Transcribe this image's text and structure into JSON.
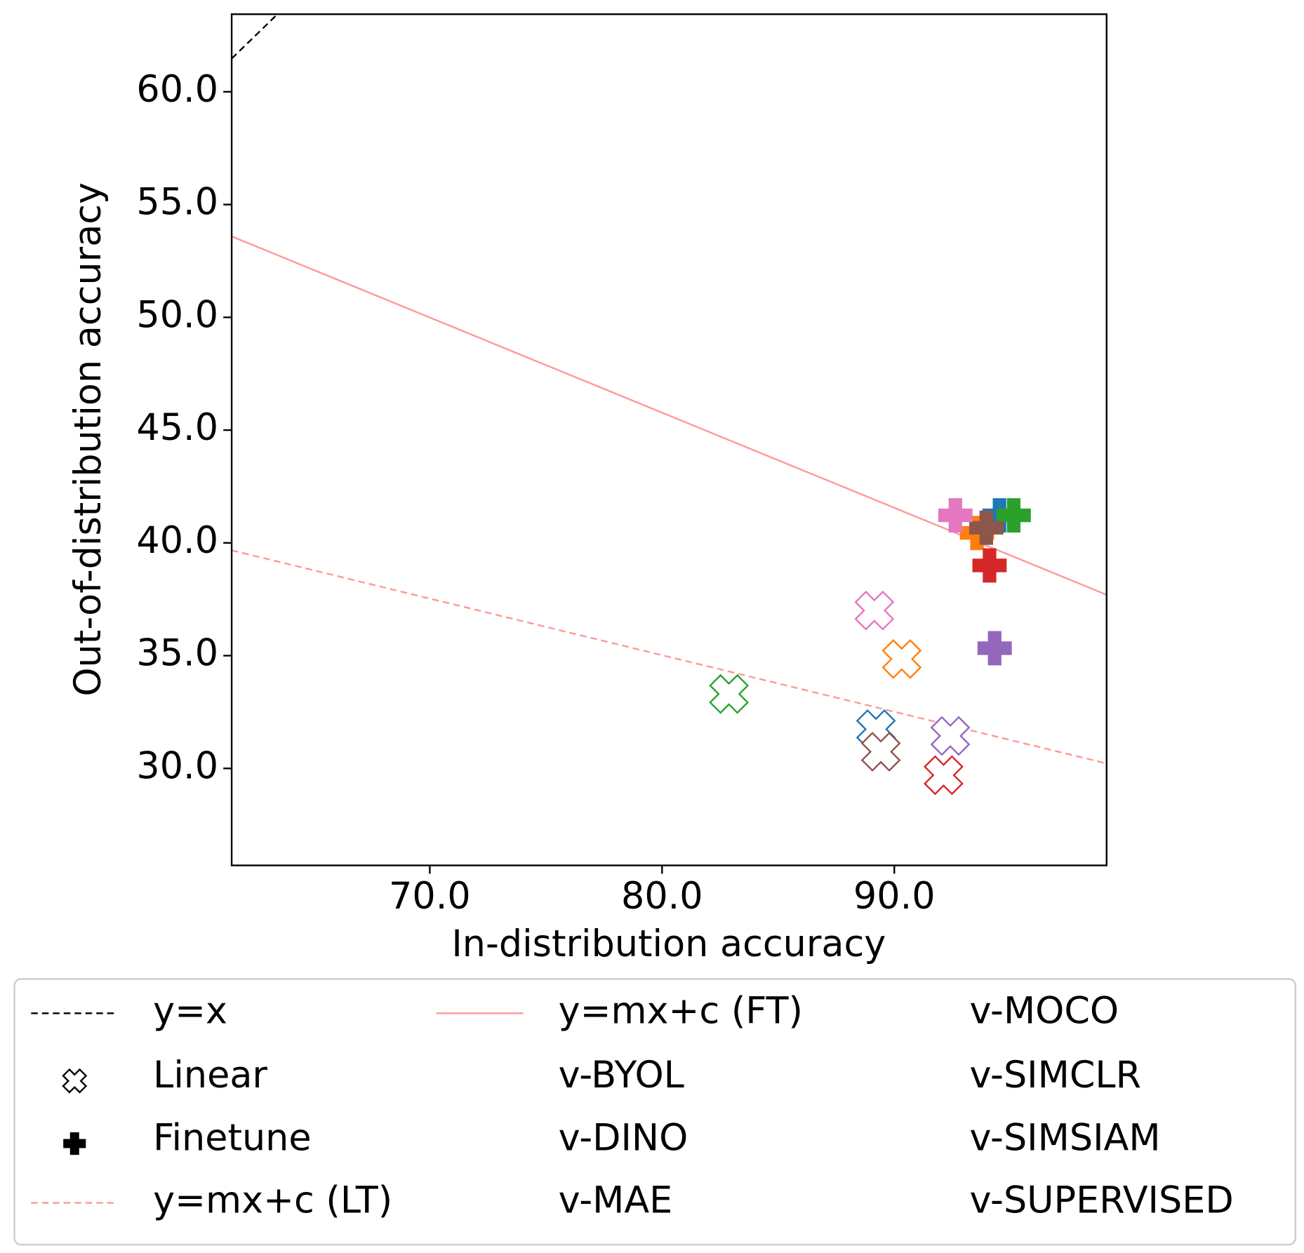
{
  "chart_data": {
    "type": "scatter",
    "xlabel": "In-distribution accuracy",
    "ylabel": "Out-of-distribution accuracy",
    "xlim": [
      61.47,
      99.14
    ],
    "ylim": [
      25.7,
      63.44
    ],
    "xticks": [
      {
        "value": 70,
        "label": "70.0"
      },
      {
        "value": 80,
        "label": "80.0"
      },
      {
        "value": 90,
        "label": "90.0"
      }
    ],
    "yticks": [
      {
        "value": 30,
        "label": "30.0"
      },
      {
        "value": 35,
        "label": "35.0"
      },
      {
        "value": 40,
        "label": "40.0"
      },
      {
        "value": 45,
        "label": "45.0"
      },
      {
        "value": 50,
        "label": "50.0"
      },
      {
        "value": 55,
        "label": "55.0"
      },
      {
        "value": 60,
        "label": "60.0"
      }
    ],
    "groups": [
      {
        "name": "v-BYOL",
        "color": "#1f77b4"
      },
      {
        "name": "v-DINO",
        "color": "#ff7f0e"
      },
      {
        "name": "v-MAE",
        "color": "#2ca02c"
      },
      {
        "name": "v-MOCO",
        "color": "#d62728"
      },
      {
        "name": "v-SIMCLR",
        "color": "#9467bd"
      },
      {
        "name": "v-SIMSIAM",
        "color": "#8c564b"
      },
      {
        "name": "v-SUPERVISED",
        "color": "#e377c2"
      }
    ],
    "series": [
      {
        "name": "Linear",
        "marker": "x-open",
        "color": "#000000",
        "x": [
          89.21,
          90.32,
          82.88,
          92.12,
          92.41,
          89.42,
          89.14
        ],
        "y": [
          31.74,
          34.85,
          33.3,
          29.7,
          31.44,
          30.74,
          37.0
        ]
      },
      {
        "name": "Finetune",
        "marker": "plus-filled",
        "color": "#000000",
        "x": [
          94.53,
          93.56,
          95.14,
          94.1,
          94.32,
          93.96,
          92.63
        ],
        "y": [
          41.22,
          40.44,
          41.22,
          39.0,
          35.33,
          40.67,
          41.22
        ]
      }
    ],
    "lines": [
      {
        "name": "y=x",
        "color": "#000000",
        "dashed": true,
        "x": [
          61.47,
          63.44
        ],
        "y": [
          61.47,
          63.44
        ]
      },
      {
        "name": "y=mx+c (LT)",
        "color": "#ff9896",
        "dashed": true,
        "x": [
          61.47,
          99.14
        ],
        "y": [
          39.67,
          30.22
        ]
      },
      {
        "name": "y=mx+c (FT)",
        "color": "#ff9896",
        "dashed": false,
        "x": [
          61.47,
          99.14
        ],
        "y": [
          53.59,
          37.7
        ]
      }
    ]
  }
}
